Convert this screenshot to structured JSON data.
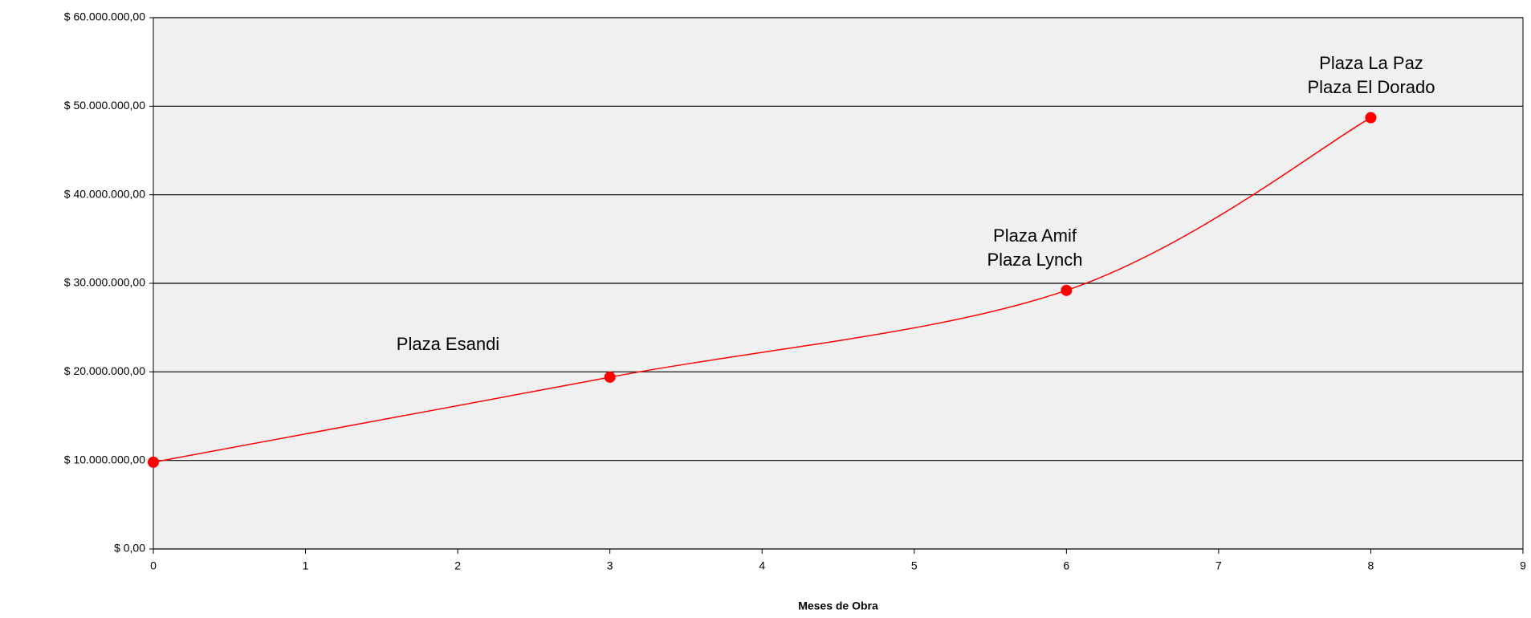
{
  "chart_data": {
    "type": "line",
    "x_label": "Meses de Obra",
    "x": [
      0,
      3,
      6,
      8
    ],
    "series": [
      {
        "color": "#ff0000",
        "values": [
          9800000,
          19400000,
          29200000,
          48700000
        ]
      }
    ],
    "xlim": [
      0,
      9
    ],
    "xticks": [
      0,
      1,
      2,
      3,
      4,
      5,
      6,
      7,
      8,
      9
    ],
    "ylim": [
      0,
      60000000
    ],
    "yticks": [
      {
        "value": 0,
        "label": "$ 0,00"
      },
      {
        "value": 10000000,
        "label": "$ 10.000.000,00"
      },
      {
        "value": 20000000,
        "label": "$ 20.000.000,00"
      },
      {
        "value": 30000000,
        "label": "$ 30.000.000,00"
      },
      {
        "value": 40000000,
        "label": "$ 40.000.000,00"
      },
      {
        "value": 50000000,
        "label": "$ 50.000.000,00"
      },
      {
        "value": 60000000,
        "label": "$ 60.000.000,00"
      }
    ],
    "grid": true,
    "smooth": true,
    "plot_background": "#f0f0f0",
    "annotations": [
      [
        "Plaza Esandi"
      ],
      [
        "Plaza Amif",
        "Plaza Lynch"
      ],
      [
        "Plaza La Paz",
        "Plaza El Dorado"
      ]
    ]
  }
}
